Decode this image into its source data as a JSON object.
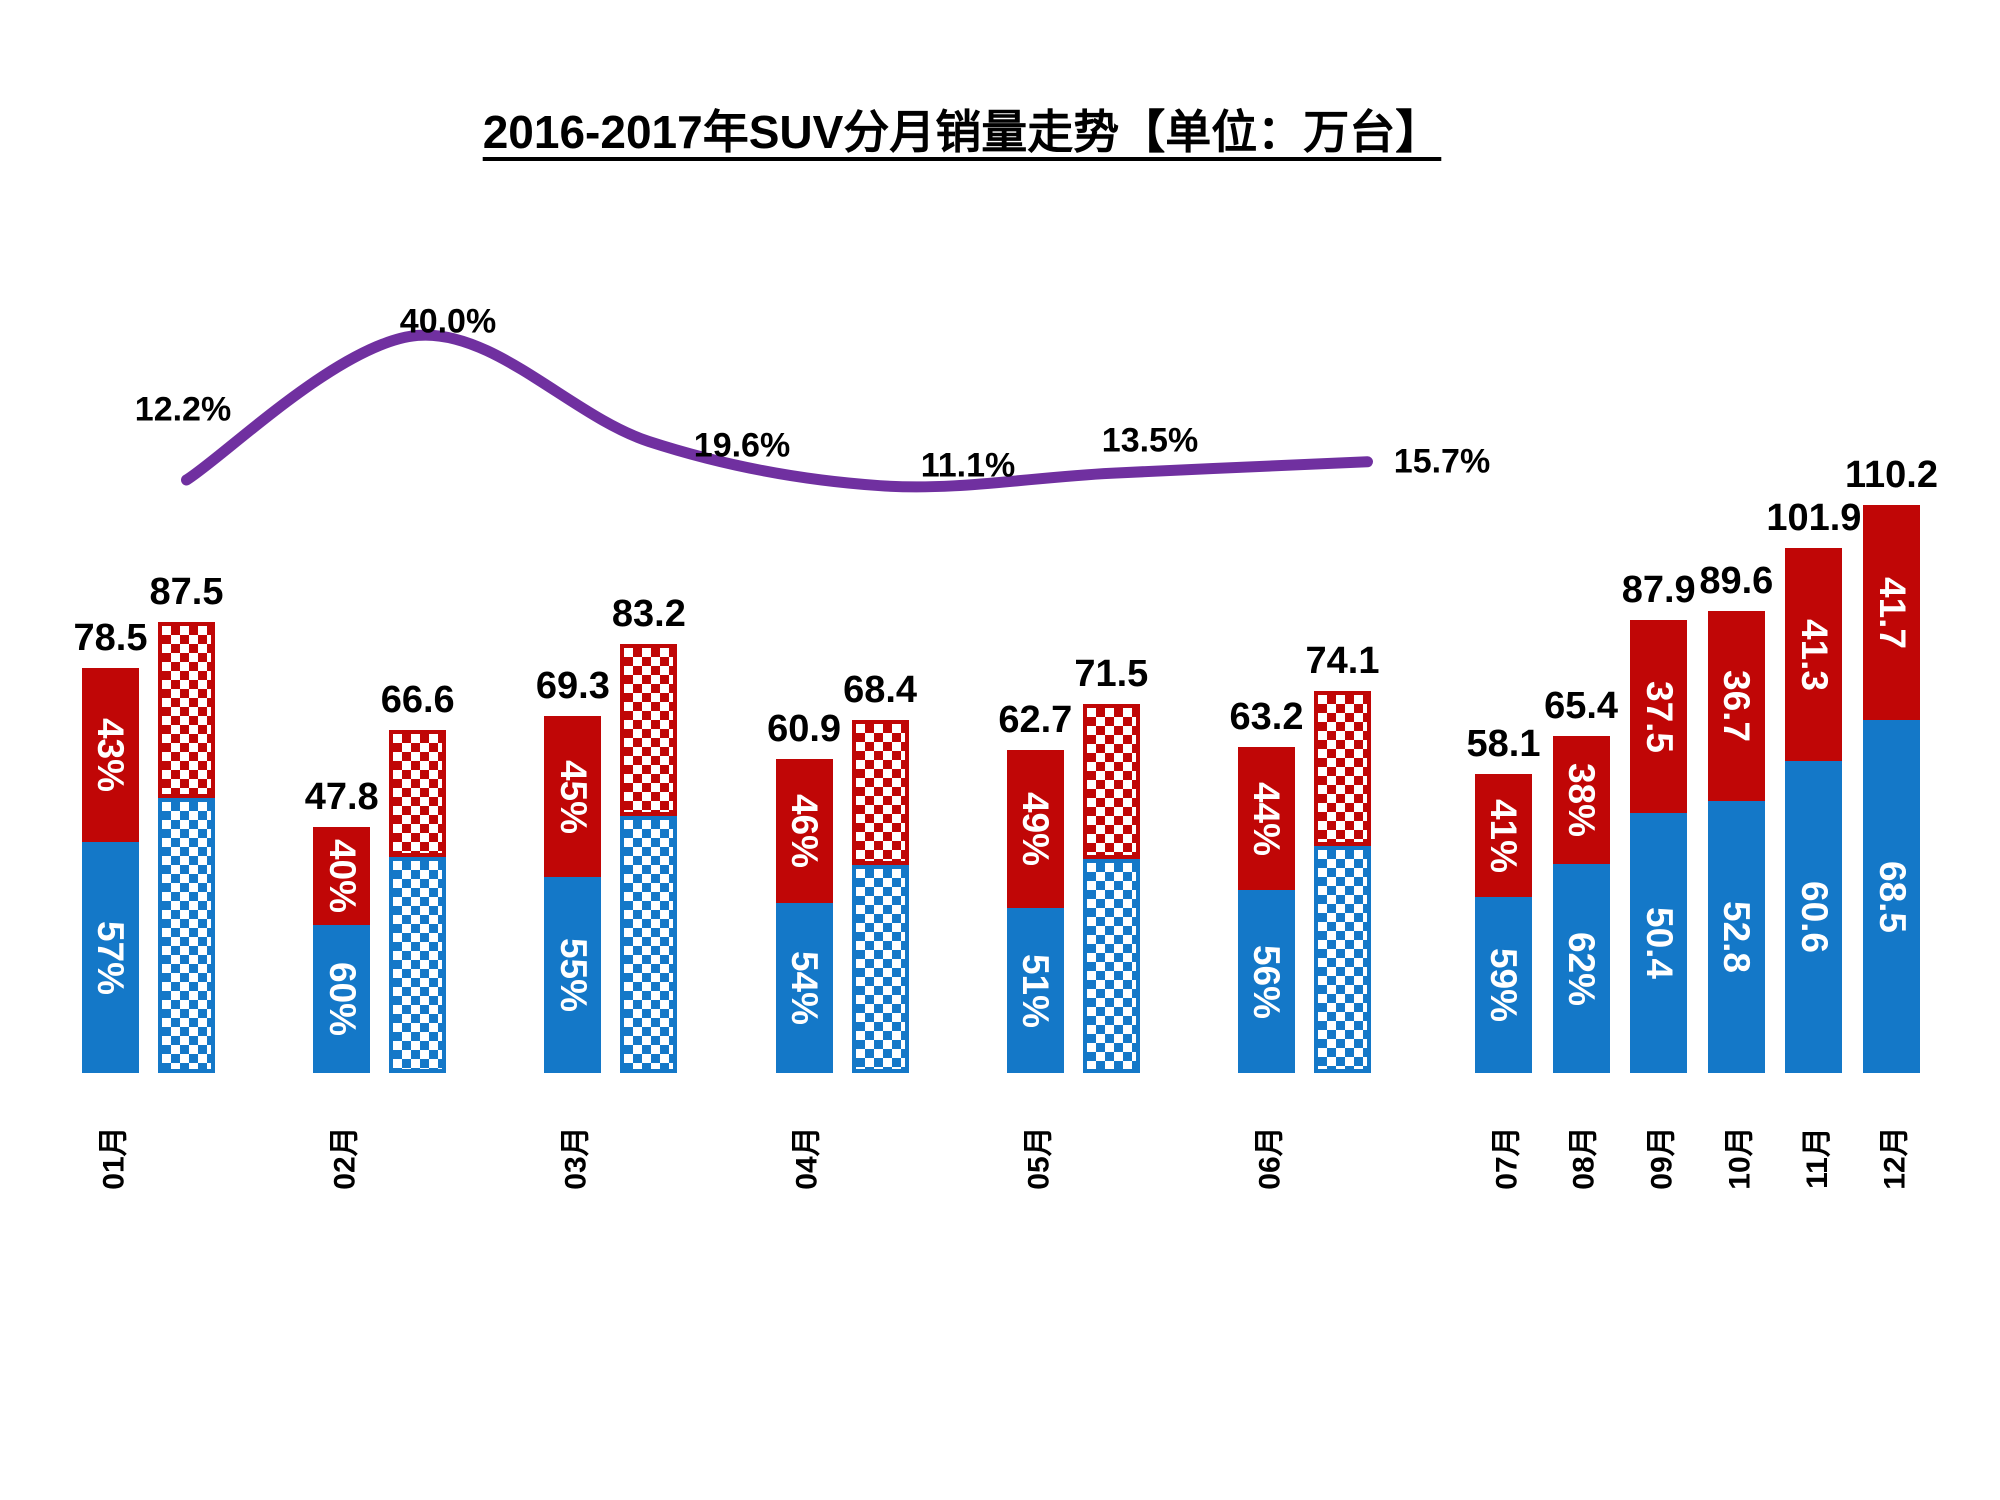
{
  "title": "2016-2017年SUV分月销量走势【单位：万台】",
  "colors": {
    "red": "#C00606",
    "blue": "#1478C8",
    "line_purple": "#7030A0",
    "in_bar_text": "#FFFFFF",
    "text": "#000000"
  },
  "chart_data": {
    "type": "bar",
    "subtype": "stacked-bars (solid = 2016, checkered = 2017) + smoothed growth line",
    "unit": "万台",
    "legend_position": "none",
    "grid": false,
    "axes_visible": false,
    "categories": [
      "01月",
      "02月",
      "03月",
      "04月",
      "05月",
      "06月",
      "07月",
      "08月",
      "09月",
      "10月",
      "11月",
      "12月"
    ],
    "months": [
      {
        "label": "01月",
        "bar_2016": {
          "total": 78.5,
          "total_label": "78.5",
          "red_label": "43%",
          "blue_label": "57%",
          "blue_frac": 0.57
        },
        "bar_2017": {
          "total": 87.5,
          "total_label": "87.5",
          "blue_frac_est": 0.61
        }
      },
      {
        "label": "02月",
        "bar_2016": {
          "total": 47.8,
          "total_label": "47.8",
          "red_label": "40%",
          "blue_label": "60%",
          "blue_frac": 0.6
        },
        "bar_2017": {
          "total": 66.6,
          "total_label": "66.6",
          "blue_frac_est": 0.63
        }
      },
      {
        "label": "03月",
        "bar_2016": {
          "total": 69.3,
          "total_label": "69.3",
          "red_label": "45%",
          "blue_label": "55%",
          "blue_frac": 0.55
        },
        "bar_2017": {
          "total": 83.2,
          "total_label": "83.2",
          "blue_frac_est": 0.6
        }
      },
      {
        "label": "04月",
        "bar_2016": {
          "total": 60.9,
          "total_label": "60.9",
          "red_label": "46%",
          "blue_label": "54%",
          "blue_frac": 0.54
        },
        "bar_2017": {
          "total": 68.4,
          "total_label": "68.4",
          "blue_frac_est": 0.59
        }
      },
      {
        "label": "05月",
        "bar_2016": {
          "total": 62.7,
          "total_label": "62.7",
          "red_label": "49%",
          "blue_label": "51%",
          "blue_frac": 0.51
        },
        "bar_2017": {
          "total": 71.5,
          "total_label": "71.5",
          "blue_frac_est": 0.58
        }
      },
      {
        "label": "06月",
        "bar_2016": {
          "total": 63.2,
          "total_label": "63.2",
          "red_label": "44%",
          "blue_label": "56%",
          "blue_frac": 0.56
        },
        "bar_2017": {
          "total": 74.1,
          "total_label": "74.1",
          "blue_frac_est": 0.595
        }
      },
      {
        "label": "07月",
        "bar_2016": {
          "total": 58.1,
          "total_label": "58.1",
          "red_label": "41%",
          "blue_label": "59%",
          "blue_frac": 0.59
        }
      },
      {
        "label": "08月",
        "bar_2016": {
          "total": 65.4,
          "total_label": "65.4",
          "red_label": "38%",
          "blue_label": "62%",
          "blue_frac": 0.62
        }
      },
      {
        "label": "09月",
        "bar_2016": {
          "total": 87.9,
          "total_label": "87.9",
          "red_label": "37.5",
          "blue_label": "50.4",
          "blue_frac": 0.573
        }
      },
      {
        "label": "10月",
        "bar_2016": {
          "total": 89.6,
          "total_label": "89.6",
          "red_label": "36.7",
          "blue_label": "52.8",
          "blue_frac": 0.589
        }
      },
      {
        "label": "11月",
        "bar_2016": {
          "total": 101.9,
          "total_label": "101.9",
          "red_label": "41.3",
          "blue_label": "60.6",
          "blue_frac": 0.595
        }
      },
      {
        "label": "12月",
        "bar_2016": {
          "total": 110.2,
          "total_label": "110.2",
          "red_label": "41.7",
          "blue_label": "68.5",
          "blue_frac": 0.622
        }
      }
    ],
    "growth_line": {
      "applies_to_months": [
        "01月",
        "02月",
        "03月",
        "04月",
        "05月",
        "06月"
      ],
      "values_pct": [
        12.2,
        40.0,
        19.6,
        11.1,
        13.5,
        15.7
      ],
      "labels": [
        "12.2%",
        "40.0%",
        "19.6%",
        "11.1%",
        "13.5%",
        "15.7%"
      ],
      "color": "#7030A0",
      "smoothed": true
    }
  }
}
